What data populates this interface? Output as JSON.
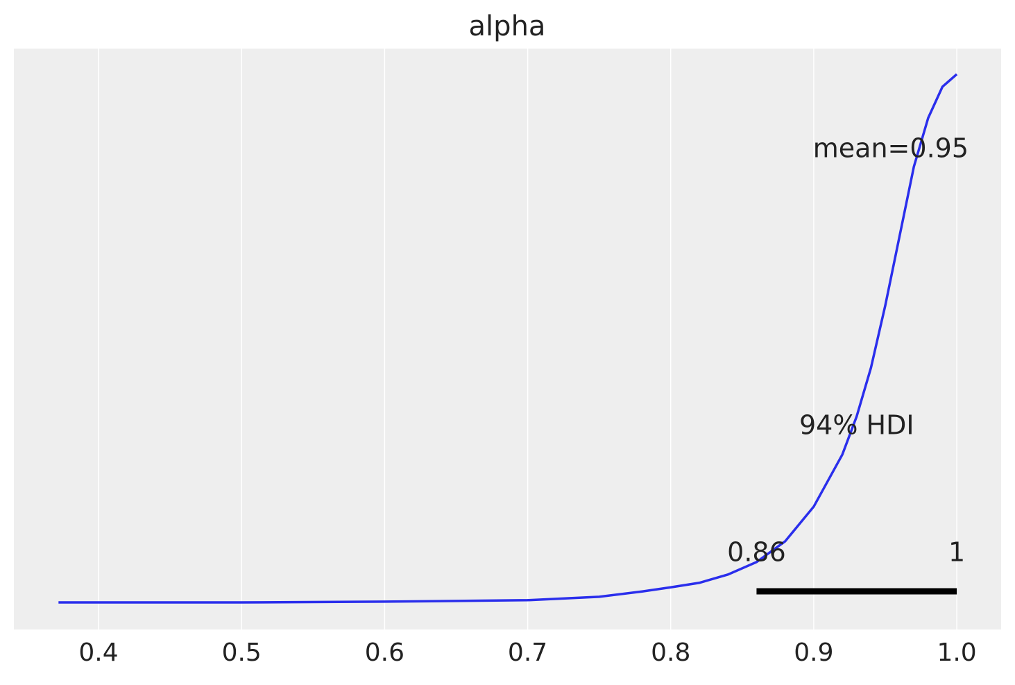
{
  "chart_data": {
    "type": "line",
    "title": "alpha",
    "x": [
      0.372,
      0.5,
      0.6,
      0.7,
      0.75,
      0.78,
      0.8,
      0.82,
      0.84,
      0.86,
      0.88,
      0.9,
      0.92,
      0.93,
      0.94,
      0.95,
      0.96,
      0.97,
      0.98,
      0.99,
      1.0
    ],
    "series": [
      {
        "color": "#2a2eec",
        "values": [
          0,
          0,
          0.02,
          0.06,
          0.15,
          0.29,
          0.4,
          0.52,
          0.74,
          1.07,
          1.62,
          2.54,
          3.92,
          4.93,
          6.22,
          7.87,
          9.71,
          11.55,
          12.84,
          13.67,
          14.0
        ]
      }
    ],
    "xlim": [
      0.3408,
      1.031
    ],
    "ylim": [
      -0.717,
      14.68
    ],
    "xticks": [
      0.4,
      0.5,
      0.6,
      0.7,
      0.8,
      0.9,
      {
        "value": 1.0,
        "label": "1.0"
      }
    ],
    "grid": true,
    "hdi": [
      0.86,
      1
    ],
    "hdi_label": "94% HDI",
    "mean_label": "mean=0.95"
  }
}
